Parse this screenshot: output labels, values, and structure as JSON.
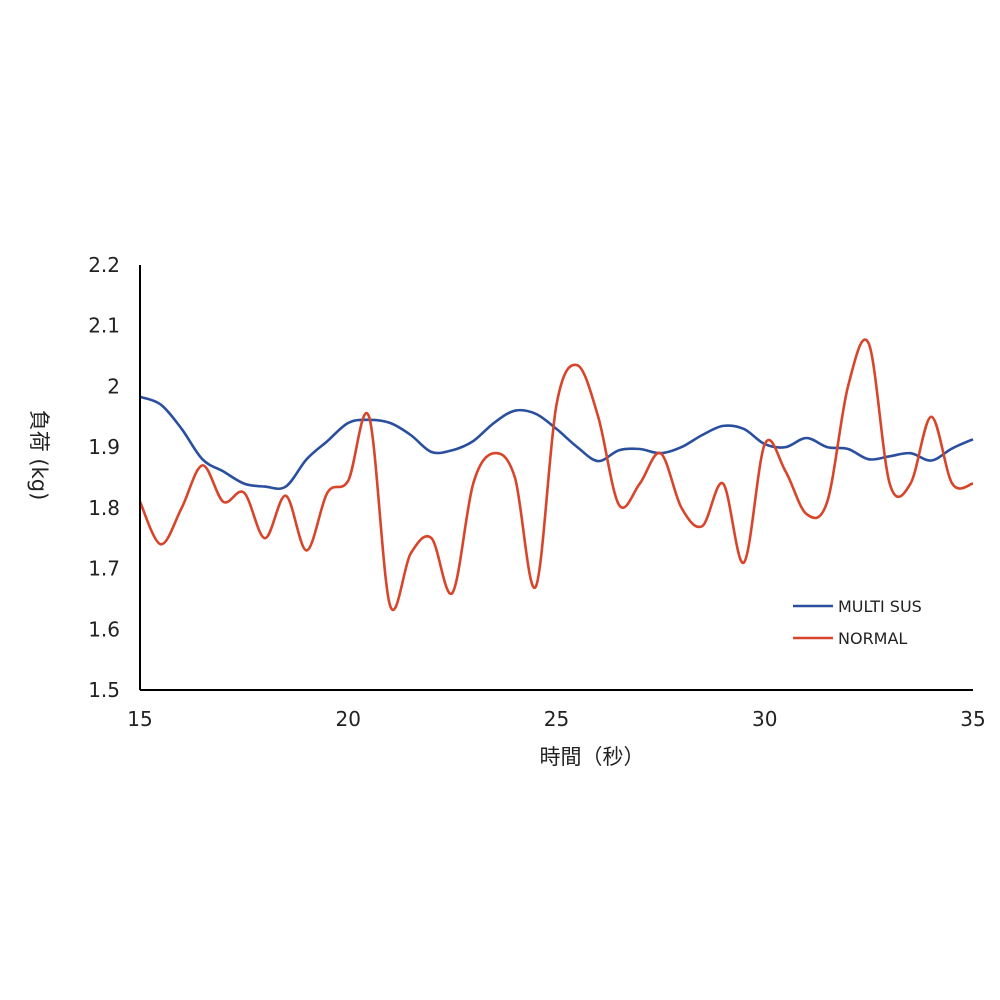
{
  "chart_data": {
    "type": "line",
    "title": "",
    "xlabel": "時間（秒）",
    "ylabel": "負荷 (kg)",
    "xlim": [
      15,
      35
    ],
    "ylim": [
      1.5,
      2.2
    ],
    "x_ticks": [
      15,
      20,
      25,
      30,
      35
    ],
    "y_ticks": [
      1.5,
      1.6,
      1.7,
      1.8,
      1.9,
      2,
      2.1,
      2.2
    ],
    "x_tick_labels": [
      "15",
      "20",
      "25",
      "30",
      "35"
    ],
    "y_tick_labels": [
      "1.5",
      "1.6",
      "1.7",
      "1.8",
      "1.9",
      "2",
      "2.1",
      "2.2"
    ],
    "grid": false,
    "legend_position": "lower-right",
    "series": [
      {
        "name": "MULTI SUS",
        "color": "#2a4f9e",
        "x": [
          15,
          15.5,
          16,
          16.5,
          17,
          17.5,
          18,
          18.5,
          19,
          19.5,
          20,
          20.5,
          21,
          21.5,
          22,
          22.5,
          23,
          23.5,
          24,
          24.5,
          25,
          25.5,
          26,
          26.5,
          27,
          27.5,
          28,
          28.5,
          29,
          29.5,
          30,
          30.5,
          31,
          31.5,
          32,
          32.5,
          33,
          33.5,
          34,
          34.5,
          35
        ],
        "y": [
          1.983,
          1.97,
          1.93,
          1.88,
          1.86,
          1.84,
          1.835,
          1.835,
          1.88,
          1.91,
          1.94,
          1.945,
          1.94,
          1.92,
          1.892,
          1.895,
          1.91,
          1.94,
          1.96,
          1.955,
          1.93,
          1.9,
          1.877,
          1.895,
          1.897,
          1.89,
          1.9,
          1.92,
          1.935,
          1.93,
          1.905,
          1.9,
          1.915,
          1.9,
          1.897,
          1.88,
          1.885,
          1.89,
          1.878,
          1.898,
          1.913
        ]
      },
      {
        "name": "NORMAL",
        "color": "#d8452a",
        "x": [
          15,
          15.5,
          16,
          16.5,
          17,
          17.5,
          18,
          18.5,
          19,
          19.5,
          20,
          20.5,
          21,
          21.5,
          22,
          22.5,
          23,
          23.5,
          24,
          24.5,
          25,
          25.5,
          26,
          26.5,
          27,
          27.5,
          28,
          28.5,
          29,
          29.5,
          30,
          30.5,
          31,
          31.5,
          32,
          32.5,
          33,
          33.5,
          34,
          34.5,
          35
        ],
        "y": [
          1.81,
          1.74,
          1.8,
          1.87,
          1.81,
          1.825,
          1.75,
          1.82,
          1.73,
          1.825,
          1.845,
          1.95,
          1.64,
          1.725,
          1.75,
          1.66,
          1.84,
          1.89,
          1.85,
          1.67,
          1.97,
          2.035,
          1.95,
          1.805,
          1.84,
          1.89,
          1.8,
          1.77,
          1.84,
          1.71,
          1.905,
          1.86,
          1.79,
          1.81,
          2.0,
          2.07,
          1.84,
          1.84,
          1.95,
          1.84,
          1.84
        ]
      }
    ]
  }
}
